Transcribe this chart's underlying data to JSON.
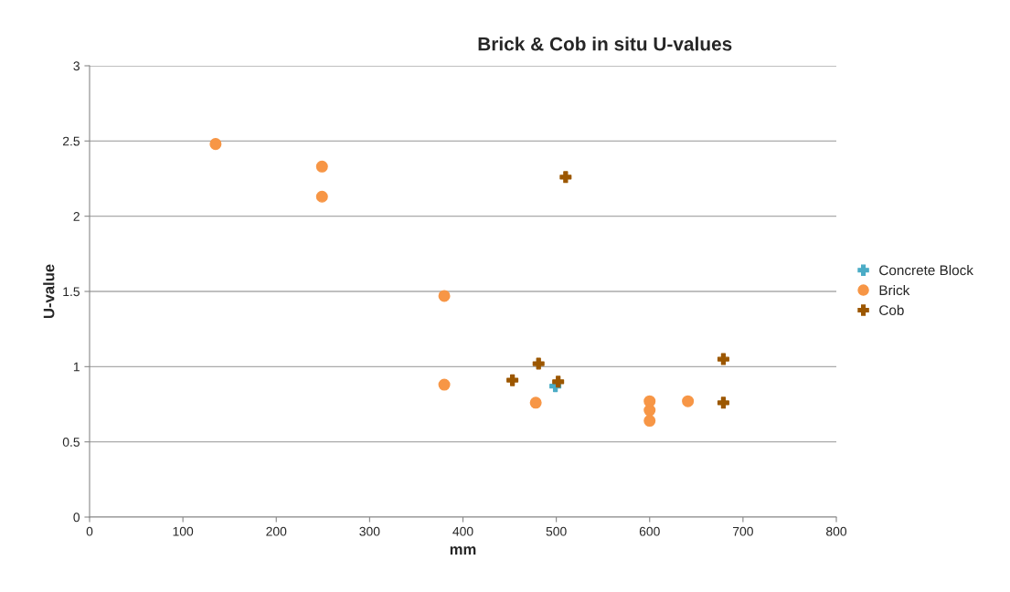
{
  "chart_data": {
    "type": "scatter",
    "title": "Brick & Cob in situ U-values",
    "xlabel": "mm",
    "ylabel": "U-value",
    "xlim": [
      0,
      800
    ],
    "xticks": [
      0,
      100,
      200,
      300,
      400,
      500,
      600,
      700,
      800
    ],
    "ylim": [
      0,
      3
    ],
    "yticks": [
      0,
      0.5,
      1,
      1.5,
      2,
      2.5,
      3
    ],
    "grid": "y",
    "legend": "right",
    "series": [
      {
        "name": "Concrete Block",
        "color": "#4bacc6",
        "marker": "cross",
        "x": [
          499
        ],
        "values": [
          0.87
        ]
      },
      {
        "name": "Brick",
        "color": "#f79646",
        "marker": "circle",
        "x": [
          135,
          249,
          249,
          380,
          380,
          478,
          600,
          600,
          600,
          641
        ],
        "values": [
          2.48,
          2.33,
          2.13,
          1.47,
          0.88,
          0.76,
          0.77,
          0.71,
          0.64,
          0.77
        ]
      },
      {
        "name": "Cob",
        "color": "#9c5700",
        "marker": "cross",
        "x": [
          453,
          481,
          502,
          510,
          679,
          679
        ],
        "values": [
          0.91,
          1.02,
          0.9,
          2.26,
          1.05,
          0.76
        ]
      }
    ]
  }
}
